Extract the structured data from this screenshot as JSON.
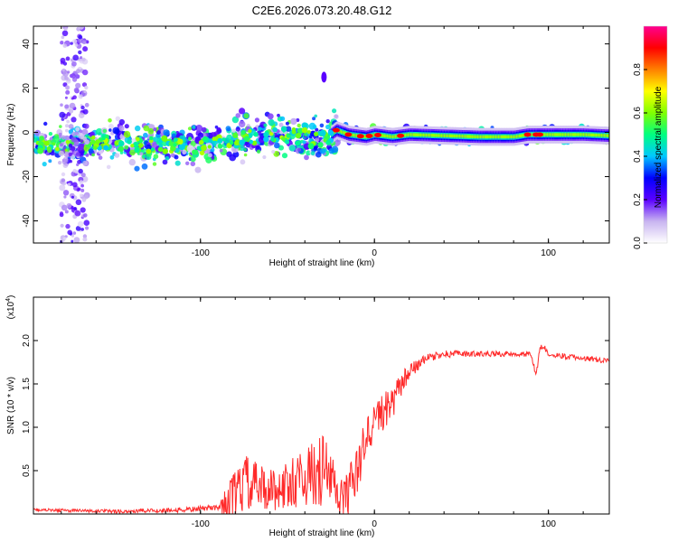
{
  "title": "C2E6.2026.073.20.48.G12",
  "chart_data": [
    {
      "type": "heatmap",
      "xlabel": "Height of straight line (km)",
      "ylabel": "Frequency (Hz)",
      "xlim": [
        -196,
        135
      ],
      "ylim": [
        -50,
        48
      ],
      "xticks": [
        -100,
        0,
        100
      ],
      "xtick_labels": [
        "-100",
        "0",
        "100"
      ],
      "yticks": [
        -40,
        -20,
        0,
        20,
        40
      ],
      "ytick_labels": [
        "-40",
        "-20",
        "0",
        "20",
        "40"
      ],
      "colorbar": {
        "label": "Normalized spectral amplitude",
        "range": [
          0,
          1
        ],
        "ticks": [
          0.0,
          0.2,
          0.4,
          0.6,
          0.8
        ],
        "tick_labels": [
          "0.0",
          "0.2",
          "0.4",
          "0.6",
          "0.8"
        ],
        "colors": [
          "#ffffff",
          "#c8b4f0",
          "#5a00ff",
          "#0000ff",
          "#00c8ff",
          "#00ff80",
          "#80ff00",
          "#ffff00",
          "#ff8000",
          "#ff0000",
          "#ff0090"
        ]
      },
      "centerline": {
        "x": [
          -196,
          -150,
          -100,
          -80,
          -60,
          -40,
          -30,
          -22,
          -15,
          -5,
          0,
          10,
          20,
          40,
          60,
          80,
          88,
          92,
          100,
          120,
          135
        ],
        "freq": [
          -6,
          -5,
          -6,
          -3,
          -1,
          -2,
          -4,
          1,
          -1,
          -2,
          -1,
          -2,
          -1,
          -1.5,
          -2,
          -2,
          -1,
          -1,
          -1,
          -1,
          -1.5
        ]
      },
      "features": {
        "spike_band_x": [
          -180,
          -165
        ],
        "isolated_spot": {
          "x": -29,
          "freq": 25
        }
      }
    },
    {
      "type": "line",
      "xlabel": "Height of straight line (km)",
      "ylabel": "SNR (10 * v/v)",
      "multiplier_label": "(x10",
      "multiplier_exp": "4",
      "xlim": [
        -196,
        135
      ],
      "ylim": [
        0,
        2.5
      ],
      "xticks": [
        -100,
        0,
        100
      ],
      "xtick_labels": [
        "-100",
        "0",
        "100"
      ],
      "yticks": [
        0.5,
        1.0,
        1.5,
        2.0
      ],
      "ytick_labels": [
        "0.5",
        "1.0",
        "1.5",
        "2.0"
      ],
      "color": "#ff2a2a",
      "envelope": {
        "x": [
          -196,
          -170,
          -150,
          -130,
          -110,
          -90,
          -80,
          -75,
          -70,
          -60,
          -50,
          -40,
          -30,
          -25,
          -20,
          -15,
          -10,
          -5,
          0,
          5,
          10,
          15,
          20,
          30,
          40,
          60,
          80,
          90,
          93,
          95,
          97,
          100,
          110,
          120,
          130,
          135
        ],
        "y": [
          0.05,
          0.04,
          0.03,
          0.04,
          0.05,
          0.08,
          0.2,
          0.4,
          0.35,
          0.3,
          0.35,
          0.45,
          0.55,
          0.45,
          0.15,
          0.3,
          0.5,
          0.9,
          1.1,
          1.2,
          1.25,
          1.5,
          1.65,
          1.8,
          1.85,
          1.85,
          1.85,
          1.85,
          1.6,
          1.9,
          1.95,
          1.85,
          1.82,
          1.8,
          1.78,
          1.78
        ]
      },
      "noise": {
        "x": [
          -196,
          -90,
          -80,
          -60,
          -40,
          -30,
          -20,
          -10,
          0,
          10,
          20,
          30,
          60,
          135
        ],
        "amp": [
          0.02,
          0.04,
          0.45,
          0.3,
          0.4,
          0.55,
          0.35,
          0.35,
          0.3,
          0.25,
          0.12,
          0.06,
          0.04,
          0.04
        ]
      }
    }
  ]
}
